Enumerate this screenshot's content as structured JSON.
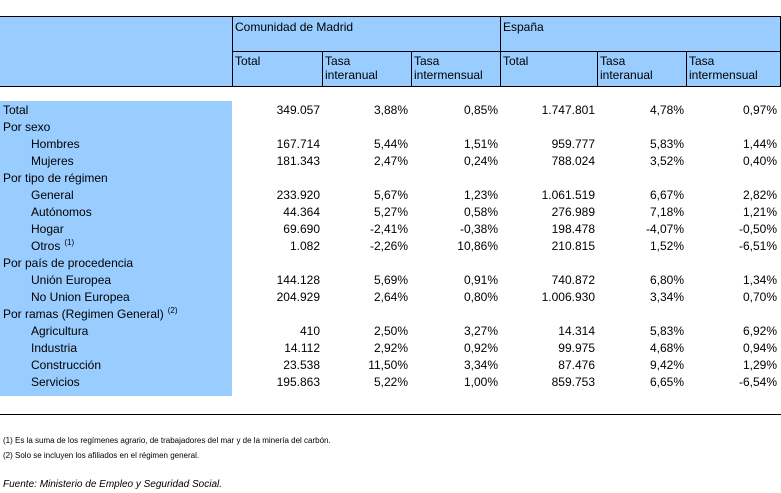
{
  "header": {
    "region1": "Comunidad de Madrid",
    "region2": "España",
    "col_total": "Total",
    "col_tasa": "Tasa",
    "col_interanual": "interanual",
    "col_intermensual": "intermensual"
  },
  "rows": [
    {
      "label": "Total",
      "indent": false,
      "sup": "",
      "v": [
        "349.057",
        "3,88%",
        "0,85%",
        "1.747.801",
        "4,78%",
        "0,97%"
      ]
    },
    {
      "label": "Por sexo",
      "indent": false,
      "sup": "",
      "v": [
        "",
        "",
        "",
        "",
        "",
        ""
      ]
    },
    {
      "label": "Hombres",
      "indent": true,
      "sup": "",
      "v": [
        "167.714",
        "5,44%",
        "1,51%",
        "959.777",
        "5,83%",
        "1,44%"
      ]
    },
    {
      "label": "Mujeres",
      "indent": true,
      "sup": "",
      "v": [
        "181.343",
        "2,47%",
        "0,24%",
        "788.024",
        "3,52%",
        "0,40%"
      ]
    },
    {
      "label": "Por tipo de régimen",
      "indent": false,
      "sup": "",
      "v": [
        "",
        "",
        "",
        "",
        "",
        ""
      ]
    },
    {
      "label": "General",
      "indent": true,
      "sup": "",
      "v": [
        "233.920",
        "5,67%",
        "1,23%",
        "1.061.519",
        "6,67%",
        "2,82%"
      ]
    },
    {
      "label": "Autónomos",
      "indent": true,
      "sup": "",
      "v": [
        "44.364",
        "5,27%",
        "0,58%",
        "276.989",
        "7,18%",
        "1,21%"
      ]
    },
    {
      "label": "Hogar",
      "indent": true,
      "sup": "",
      "v": [
        "69.690",
        "-2,41%",
        "-0,38%",
        "198.478",
        "-4,07%",
        "-0,50%"
      ]
    },
    {
      "label": "Otros",
      "indent": true,
      "sup": "(1)",
      "v": [
        "1.082",
        "-2,26%",
        "10,86%",
        "210.815",
        "1,52%",
        "-6,51%"
      ]
    },
    {
      "label": "Por país de procedencia",
      "indent": false,
      "sup": "",
      "v": [
        "",
        "",
        "",
        "",
        "",
        ""
      ]
    },
    {
      "label": "Unión Europea",
      "indent": true,
      "sup": "",
      "v": [
        "144.128",
        "5,69%",
        "0,91%",
        "740.872",
        "6,80%",
        "1,34%"
      ]
    },
    {
      "label": "No Union Europea",
      "indent": true,
      "sup": "",
      "v": [
        "204.929",
        "2,64%",
        "0,80%",
        "1.006.930",
        "3,34%",
        "0,70%"
      ]
    },
    {
      "label": "Por ramas (Regimen General)",
      "indent": false,
      "sup": "(2)",
      "v": [
        "",
        "",
        "",
        "",
        "",
        ""
      ]
    },
    {
      "label": "Agricultura",
      "indent": true,
      "sup": "",
      "v": [
        "410",
        "2,50%",
        "3,27%",
        "14.314",
        "5,83%",
        "6,92%"
      ]
    },
    {
      "label": "Industria",
      "indent": true,
      "sup": "",
      "v": [
        "14.112",
        "2,92%",
        "0,92%",
        "99.975",
        "4,68%",
        "0,94%"
      ]
    },
    {
      "label": "Construcción",
      "indent": true,
      "sup": "",
      "v": [
        "23.538",
        "11,50%",
        "3,34%",
        "87.476",
        "9,42%",
        "1,29%"
      ]
    },
    {
      "label": "Servicios",
      "indent": true,
      "sup": "",
      "v": [
        "195.863",
        "5,22%",
        "1,00%",
        "859.753",
        "6,65%",
        "-6,54%"
      ]
    }
  ],
  "notes": {
    "n1": "(1) Es la suma de los regímenes  agrario, de trabajadores del mar y de la minería del carbón.",
    "n2": "(2) Solo se incluyen los afiliados en el régimen general."
  },
  "source": "Fuente: Ministerio de Empleo y Seguridad Social."
}
